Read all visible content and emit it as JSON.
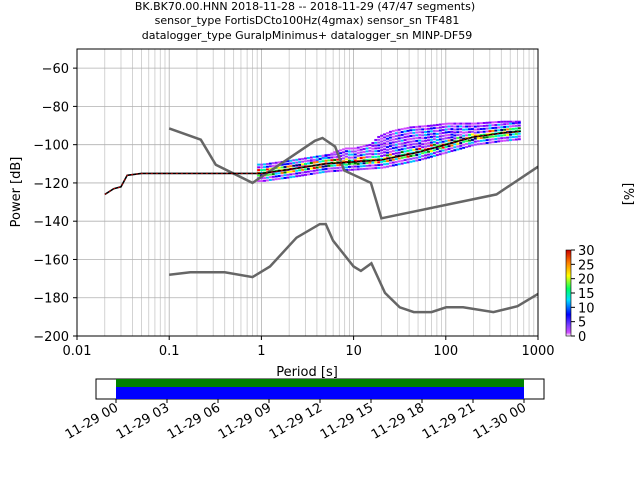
{
  "title": {
    "line1": "BK.BK70.00.HNN   2018-11-28 -- 2018-11-29  (47/47 segments)",
    "line2": "sensor_type FortisDCto100Hz(4gmax) sensor_sn TF481",
    "line3": "datalogger_type GuralpMinimus+ datalogger_sn MINP-DF59"
  },
  "colorbar": {
    "label": "[%]",
    "ticks": [
      "0",
      "5",
      "10",
      "15",
      "20",
      "25",
      "30"
    ],
    "range": [
      0,
      30
    ]
  },
  "chart_data": [
    {
      "type": "heatmap",
      "xlabel": "Period [s]",
      "ylabel": "Power [dB]",
      "x_scale": "log",
      "xlim": [
        0.01,
        1000
      ],
      "ylim": [
        -200,
        -50
      ],
      "x_ticks": [
        "0.01",
        "0.1",
        "1",
        "10",
        "100",
        "1000"
      ],
      "y_ticks": [
        "−200",
        "−180",
        "−160",
        "−140",
        "−120",
        "−100",
        "−80",
        "−60"
      ],
      "grid": true,
      "noise_models": [
        {
          "period": [
            0.1,
            0.22,
            0.32,
            0.8,
            3.8,
            4.6,
            6.3,
            7.9,
            15.4,
            20,
            354.8,
            1000
          ],
          "power": [
            -91.5,
            -97.4,
            -110.5,
            -120,
            -98,
            -96.5,
            -101,
            -113.5,
            -120,
            -138.5,
            -126,
            -111.5
          ]
        },
        {
          "period": [
            0.1,
            0.17,
            0.4,
            0.8,
            1.24,
            2.4,
            4.3,
            5,
            6,
            10,
            12,
            15.6,
            21.9,
            31.6,
            45,
            70,
            101,
            154,
            328,
            600,
            1000
          ],
          "power": [
            -168,
            -166.7,
            -166.7,
            -169.2,
            -163.7,
            -148.6,
            -141.5,
            -141.5,
            -150.2,
            -163.7,
            -166,
            -162,
            -177.5,
            -185,
            -187.5,
            -187.5,
            -185,
            -185,
            -187.5,
            -184.4,
            -178
          ]
        }
      ],
      "mode_curve": {
        "period": [
          0.02,
          0.025,
          0.03,
          0.035,
          0.05,
          0.1,
          0.5,
          1,
          2,
          5,
          10,
          20,
          50,
          100,
          200,
          400,
          650
        ],
        "power": [
          -126,
          -123,
          -122,
          -116,
          -115,
          -115,
          -115,
          -115,
          -113,
          -110,
          -109,
          -108,
          -104,
          -100,
          -96,
          -94,
          -93
        ]
      },
      "upper_envelope": {
        "period": [
          1,
          2,
          4,
          6,
          8,
          10,
          12,
          15,
          18,
          25,
          40,
          70,
          100,
          200,
          400,
          650
        ],
        "power": [
          -115,
          -113,
          -108,
          -104,
          -102,
          -102,
          -101,
          -100,
          -96,
          -93,
          -91,
          -90,
          -89,
          -89,
          -88,
          -88
        ]
      },
      "lower_envelope": {
        "period": [
          1,
          2,
          4,
          10,
          20,
          50,
          100,
          200,
          400,
          650
        ],
        "power": [
          -117,
          -116,
          -113,
          -111,
          -110,
          -106,
          -103,
          -100,
          -98,
          -97
        ]
      }
    },
    {
      "type": "bar",
      "x_ticks": [
        "11-29 00",
        "11-29 03",
        "11-29 06",
        "11-29 09",
        "11-29 12",
        "11-29 15",
        "11-29 18",
        "11-29 21",
        "11-30 00"
      ],
      "available_data_hours": [
        0,
        24
      ],
      "colors": {
        "upper": "#008000",
        "lower": "#0000ff"
      }
    }
  ]
}
